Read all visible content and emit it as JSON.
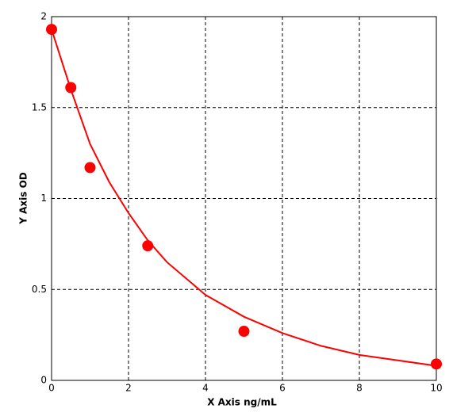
{
  "chart_data": {
    "type": "scatter",
    "x_label": "X Axis ng/mL",
    "y_label": "Y Axis OD",
    "color": "#ff0000",
    "grid": true,
    "xlim": [
      0,
      10
    ],
    "xticks": [
      0,
      2,
      4,
      6,
      8,
      10
    ],
    "ylim": [
      0,
      2
    ],
    "yticks": [
      0,
      0.5,
      1,
      1.5,
      2
    ],
    "points": {
      "x": [
        0,
        0.5,
        1,
        2.5,
        5,
        10
      ],
      "y": [
        1.93,
        1.61,
        1.17,
        0.74,
        0.27,
        0.09
      ]
    },
    "curve": {
      "x": [
        0,
        0.5,
        1,
        1.5,
        2,
        2.5,
        3,
        4,
        5,
        6,
        7,
        8,
        9,
        10
      ],
      "y": [
        1.93,
        1.6,
        1.3,
        1.09,
        0.92,
        0.77,
        0.65,
        0.47,
        0.35,
        0.26,
        0.19,
        0.14,
        0.11,
        0.08
      ]
    }
  }
}
